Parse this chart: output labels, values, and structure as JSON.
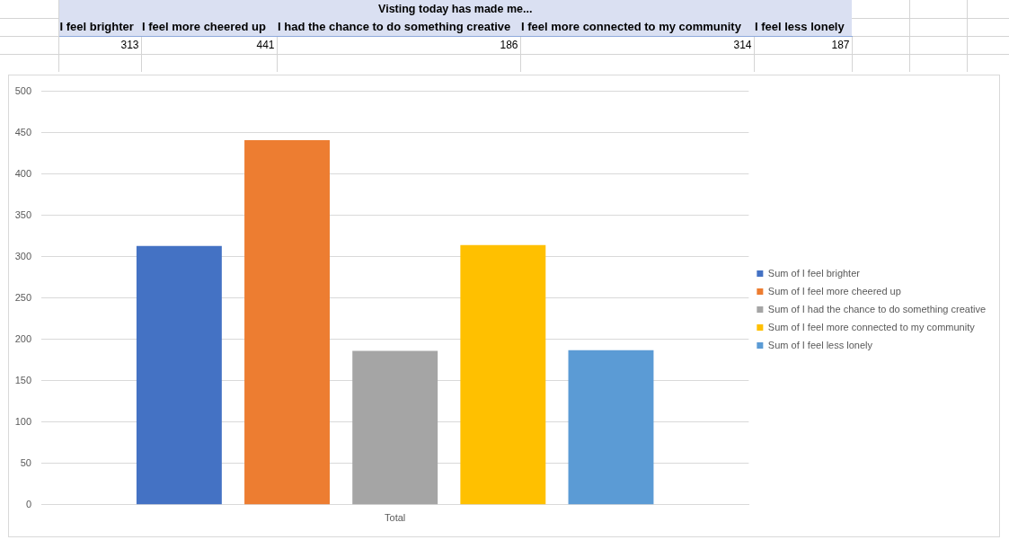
{
  "chart_data": [
    {
      "type": "other",
      "title": "Visting today has made me...",
      "categories": [
        "I feel brighter",
        "I feel more cheered up",
        "I had the chance to do something creative",
        "I feel more connected to my community",
        "I feel less lonely"
      ],
      "values": [
        313,
        441,
        186,
        314,
        187
      ],
      "data_labels": true
    },
    {
      "type": "bar",
      "categories": [
        "Total"
      ],
      "series": [
        {
          "name": "Sum of I feel brighter",
          "color": "#4472c4",
          "values": [
            313
          ]
        },
        {
          "name": "Sum of I feel more cheered up",
          "color": "#ed7d31",
          "values": [
            441
          ]
        },
        {
          "name": "Sum of I had the chance to do something creative",
          "color": "#a5a5a5",
          "values": [
            186
          ]
        },
        {
          "name": "Sum of I feel more connected to my community",
          "color": "#ffc000",
          "values": [
            314
          ]
        },
        {
          "name": "Sum of I feel less lonely",
          "color": "#5b9bd5",
          "values": [
            187
          ]
        }
      ],
      "ylim": [
        0,
        500
      ],
      "yticks": [
        0,
        50,
        100,
        150,
        200,
        250,
        300,
        350,
        400,
        450,
        500
      ],
      "grid": "y",
      "legend": "right"
    }
  ]
}
